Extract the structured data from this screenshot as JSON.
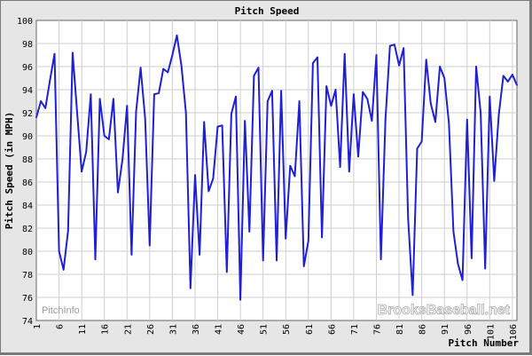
{
  "chart_data": {
    "type": "line",
    "title": "Pitch Speed",
    "xlabel": "Pitch Number",
    "ylabel": "Pitch Speed (in MPH)",
    "xlim": [
      1,
      107
    ],
    "ylim": [
      74,
      100
    ],
    "ytick_step": 2,
    "xticks": [
      1,
      6,
      11,
      16,
      21,
      26,
      31,
      36,
      41,
      46,
      51,
      56,
      61,
      66,
      71,
      76,
      81,
      86,
      91,
      96,
      101,
      106
    ],
    "grid": true,
    "line_color": "#1f1fd6",
    "series": [
      {
        "x": [
          1,
          2,
          3,
          4,
          5,
          6,
          7,
          8,
          9,
          10,
          11,
          12,
          13,
          14,
          15,
          16,
          17,
          18,
          19,
          20,
          21,
          22,
          23,
          24,
          25,
          26,
          27,
          28,
          29,
          30,
          31,
          32,
          33,
          34,
          35,
          36,
          37,
          38,
          39,
          40,
          41,
          42,
          43,
          44,
          45,
          46,
          47,
          48,
          49,
          50,
          51,
          52,
          53,
          54,
          55,
          56,
          57,
          58,
          59,
          60,
          61,
          62,
          63,
          64,
          65,
          66,
          67,
          68,
          69,
          70,
          71,
          72,
          73,
          74,
          75,
          76,
          77,
          78,
          79,
          80,
          81,
          82,
          83,
          84,
          85,
          86,
          87,
          88,
          89,
          90,
          91,
          92,
          93,
          94,
          95,
          96,
          97,
          98,
          99,
          100,
          101,
          102,
          103,
          104,
          105,
          106,
          107
        ],
        "y": [
          91.6,
          93.0,
          92.4,
          94.8,
          97.1,
          80.0,
          78.4,
          81.8,
          97.2,
          92.0,
          86.9,
          88.6,
          93.6,
          79.3,
          93.2,
          90.0,
          89.7,
          93.2,
          85.1,
          88.0,
          92.6,
          79.7,
          92.1,
          95.9,
          91.5,
          80.5,
          93.6,
          93.7,
          95.8,
          95.5,
          97.0,
          98.7,
          96.1,
          92.0,
          76.8,
          86.6,
          79.7,
          91.2,
          85.2,
          86.3,
          90.8,
          90.9,
          78.2,
          91.9,
          93.4,
          75.8,
          91.3,
          81.7,
          95.2,
          95.9,
          79.2,
          93.0,
          93.9,
          79.2,
          93.9,
          81.1,
          87.4,
          86.5,
          93.0,
          78.7,
          80.9,
          96.3,
          96.8,
          81.2,
          94.3,
          92.6,
          94.0,
          87.3,
          97.1,
          86.9,
          93.6,
          88.2,
          93.8,
          93.2,
          91.3,
          97.0,
          79.3,
          91.4,
          97.8,
          97.9,
          96.1,
          97.6,
          82.8,
          76.2,
          88.9,
          89.5,
          96.6,
          92.8,
          91.2,
          96.0,
          95.0,
          91.1,
          81.7,
          78.9,
          77.5,
          91.4,
          79.4,
          96.0,
          92.0,
          78.5,
          93.4,
          86.1,
          91.8,
          95.2,
          94.7,
          95.3,
          94.4
        ]
      }
    ]
  },
  "watermark": {
    "brand": "BrooksBaseball.net",
    "pitchinfo": "PitchInfo"
  }
}
